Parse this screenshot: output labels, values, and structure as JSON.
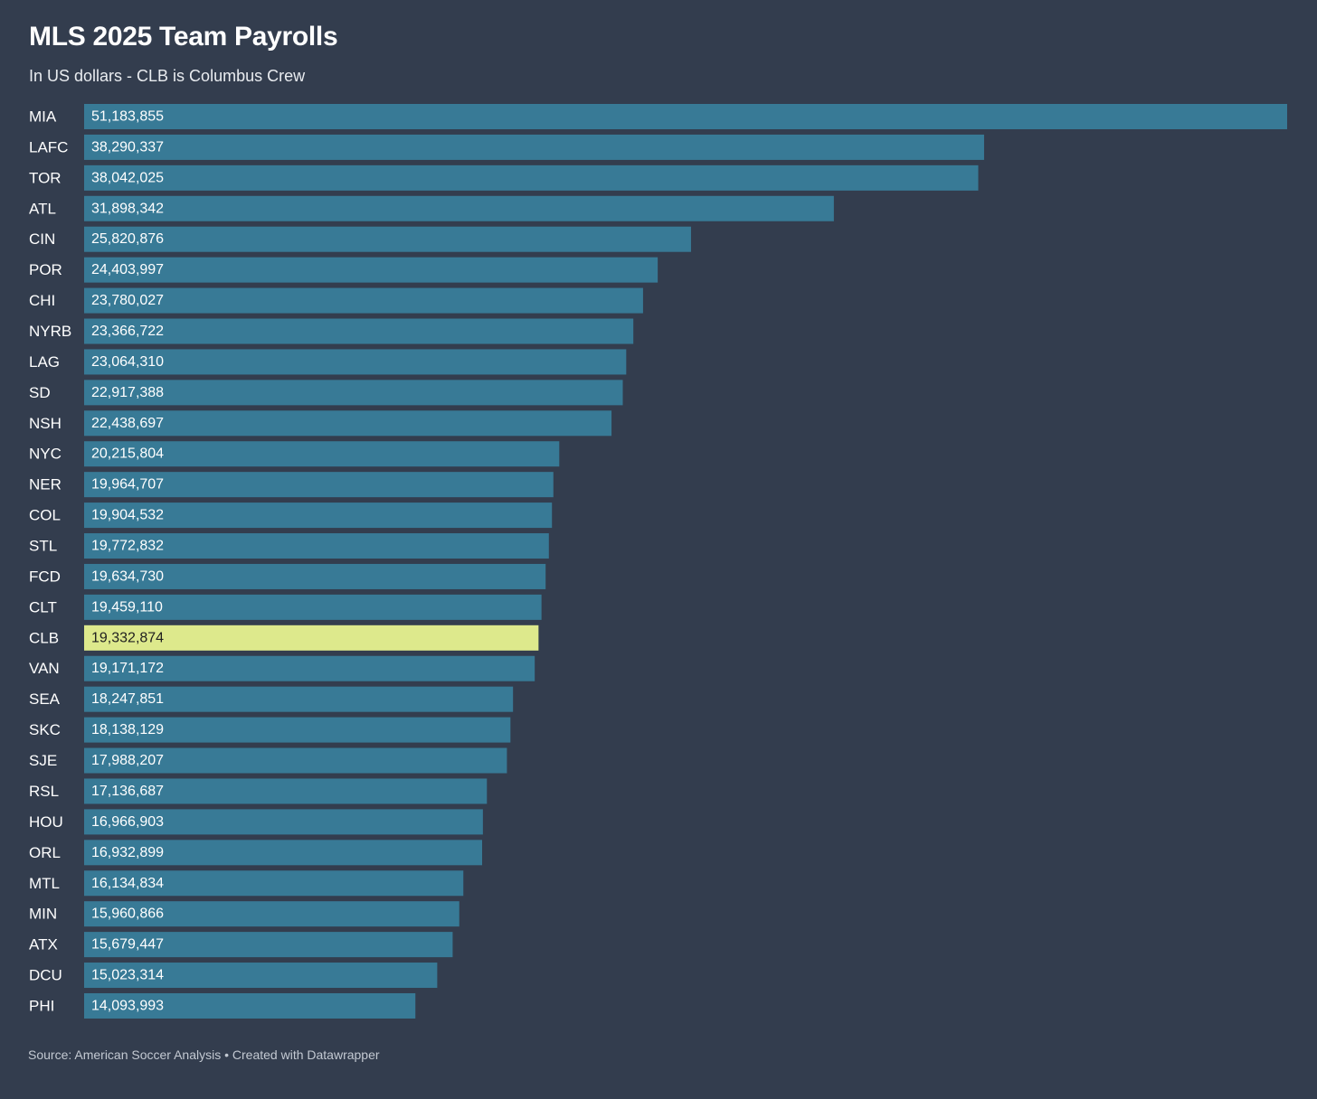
{
  "colors": {
    "background": "#333d4e",
    "bar": "#387a96",
    "highlight": "#dde98c",
    "label_on_bar": "#ffffff",
    "label_on_highlight": "#1f1f1f",
    "category_text": "#ffffff"
  },
  "footer": {
    "source_label": "Source: ",
    "source": "American Soccer Analysis",
    "separator": " • ",
    "credit": "Created with Datawrapper"
  },
  "chart_data": {
    "type": "bar",
    "orientation": "horizontal",
    "title": "MLS 2025 Team Payrolls",
    "subtitle": "In US dollars - CLB is Columbus Crew",
    "xlabel": "",
    "ylabel": "",
    "xlim": [
      0,
      51183855
    ],
    "grid": false,
    "highlight_category": "CLB",
    "categories": [
      "MIA",
      "LAFC",
      "TOR",
      "ATL",
      "CIN",
      "POR",
      "CHI",
      "NYRB",
      "LAG",
      "SD",
      "NSH",
      "NYC",
      "NER",
      "COL",
      "STL",
      "FCD",
      "CLT",
      "CLB",
      "VAN",
      "SEA",
      "SKC",
      "SJE",
      "RSL",
      "HOU",
      "ORL",
      "MTL",
      "MIN",
      "ATX",
      "DCU",
      "PHI"
    ],
    "values": [
      51183855,
      38290337,
      38042025,
      31898342,
      25820876,
      24403997,
      23780027,
      23366722,
      23064310,
      22917388,
      22438697,
      20215804,
      19964707,
      19904532,
      19772832,
      19634730,
      19459110,
      19332874,
      19171172,
      18247851,
      18138129,
      17988207,
      17136687,
      16966903,
      16932899,
      16134834,
      15960866,
      15679447,
      15023314,
      14093993
    ],
    "value_labels": [
      "51,183,855",
      "38,290,337",
      "38,042,025",
      "31,898,342",
      "25,820,876",
      "24,403,997",
      "23,780,027",
      "23,366,722",
      "23,064,310",
      "22,917,388",
      "22,438,697",
      "20,215,804",
      "19,964,707",
      "19,904,532",
      "19,772,832",
      "19,634,730",
      "19,459,110",
      "19,332,874",
      "19,171,172",
      "18,247,851",
      "18,138,129",
      "17,988,207",
      "17,136,687",
      "16,966,903",
      "16,932,899",
      "16,134,834",
      "15,960,866",
      "15,679,447",
      "15,023,314",
      "14,093,993"
    ]
  }
}
